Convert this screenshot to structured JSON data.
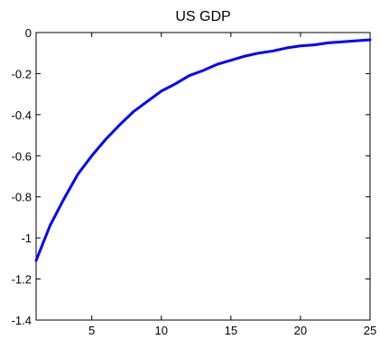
{
  "chart_data": {
    "type": "line",
    "title": "US GDP",
    "xlabel": "",
    "ylabel": "",
    "xlim": [
      1,
      25
    ],
    "ylim": [
      -1.4,
      0
    ],
    "x_ticks": [
      5,
      10,
      15,
      20,
      25
    ],
    "y_ticks": [
      0,
      -0.2,
      -0.4,
      -0.6,
      -0.8,
      -1,
      -1.2,
      -1.4
    ],
    "x_tick_labels": [
      "5",
      "10",
      "15",
      "20",
      "25"
    ],
    "y_tick_labels": [
      "0",
      "-0.2",
      "-0.4",
      "-0.6",
      "-0.8",
      "-1",
      "-1.2",
      "-1.4"
    ],
    "grid": false,
    "series": [
      {
        "color": "#0000ff",
        "x": [
          1,
          2,
          3,
          4,
          5,
          6,
          7,
          8,
          9,
          10,
          11,
          12,
          13,
          14,
          15,
          16,
          17,
          18,
          19,
          20,
          21,
          22,
          23,
          24,
          25
        ],
        "values": [
          -1.11,
          -0.94,
          -0.81,
          -0.69,
          -0.6,
          -0.52,
          -0.45,
          -0.385,
          -0.335,
          -0.285,
          -0.25,
          -0.21,
          -0.185,
          -0.155,
          -0.135,
          -0.115,
          -0.1,
          -0.09,
          -0.075,
          -0.065,
          -0.06,
          -0.05,
          -0.045,
          -0.04,
          -0.035
        ]
      }
    ]
  }
}
